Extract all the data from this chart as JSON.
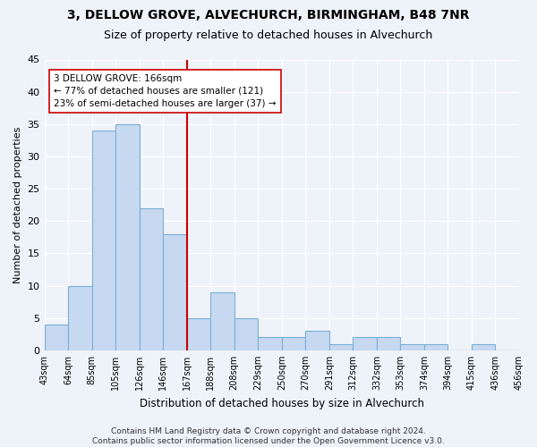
{
  "title1": "3, DELLOW GROVE, ALVECHURCH, BIRMINGHAM, B48 7NR",
  "title2": "Size of property relative to detached houses in Alvechurch",
  "xlabel": "Distribution of detached houses by size in Alvechurch",
  "ylabel": "Number of detached properties",
  "tick_labels": [
    "43sqm",
    "64sqm",
    "85sqm",
    "105sqm",
    "126sqm",
    "146sqm",
    "167sqm",
    "188sqm",
    "208sqm",
    "229sqm",
    "250sqm",
    "270sqm",
    "291sqm",
    "312sqm",
    "332sqm",
    "353sqm",
    "374sqm",
    "394sqm",
    "415sqm",
    "436sqm",
    "456sqm"
  ],
  "values": [
    4,
    10,
    34,
    35,
    22,
    18,
    5,
    9,
    5,
    2,
    2,
    3,
    1,
    2,
    2,
    1,
    1,
    0,
    1,
    0
  ],
  "bar_color": "#c6d9f0",
  "bar_edge_color": "#7bafd4",
  "vline_color": "#cc0000",
  "vline_pos": 6.0,
  "annotation_text": "3 DELLOW GROVE: 166sqm\n← 77% of detached houses are smaller (121)\n23% of semi-detached houses are larger (37) →",
  "annotation_box_color": "#ffffff",
  "annotation_box_edge": "#cc0000",
  "ylim": [
    0,
    45
  ],
  "yticks": [
    0,
    5,
    10,
    15,
    20,
    25,
    30,
    35,
    40,
    45
  ],
  "footer": "Contains HM Land Registry data © Crown copyright and database right 2024.\nContains public sector information licensed under the Open Government Licence v3.0.",
  "bg_color": "#eef2f9",
  "grid_color": "#ffffff"
}
